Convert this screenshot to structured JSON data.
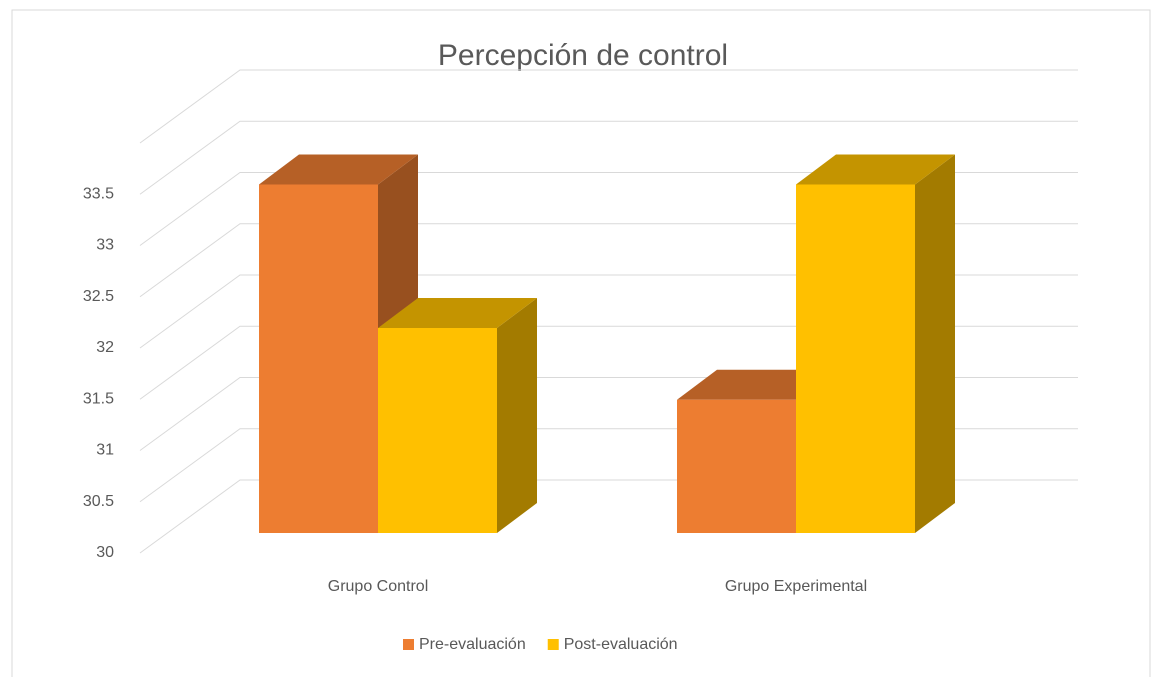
{
  "chart_data": {
    "type": "bar3d",
    "title": "Percepción de control",
    "categories": [
      "Grupo Control",
      "Grupo Experimental"
    ],
    "series": [
      {
        "name": "Pre-evaluación",
        "color": "#ed7d31",
        "values": [
          33.4,
          31.3
        ]
      },
      {
        "name": "Post-evaluación",
        "color": "#ffc000",
        "values": [
          32.0,
          33.4
        ]
      }
    ],
    "ylim": [
      30,
      34
    ],
    "yticks": [
      30,
      30.5,
      31,
      31.5,
      32,
      32.5,
      33,
      33.5
    ],
    "grid": true,
    "legend": "bottom"
  }
}
